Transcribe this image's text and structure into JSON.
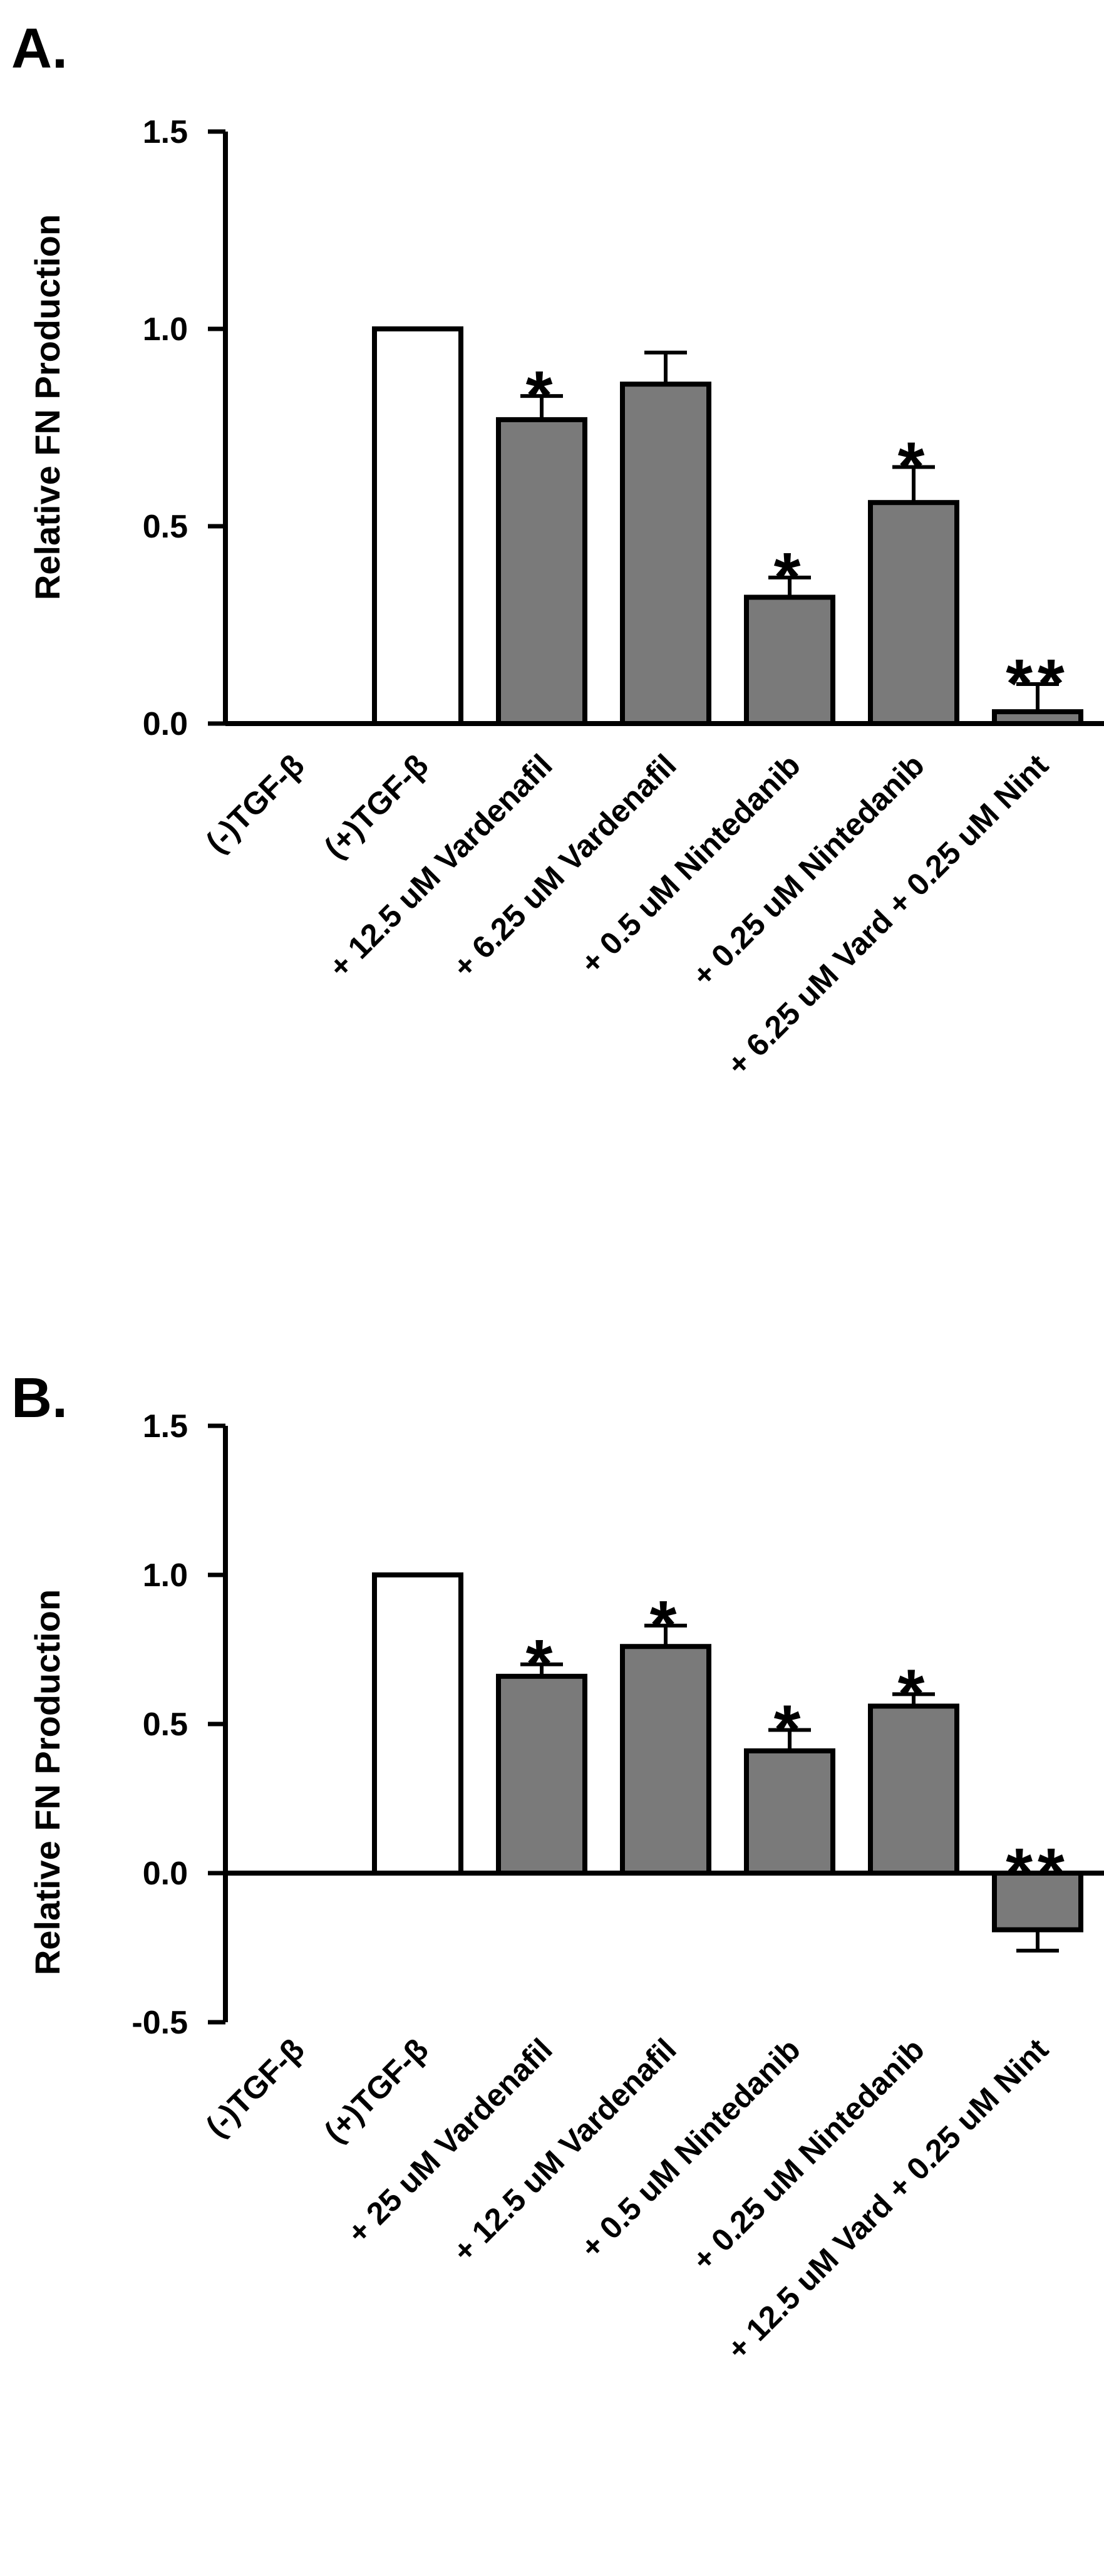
{
  "figure": {
    "panel_labels": [
      "A.",
      "B."
    ]
  },
  "colors": {
    "filled_bar": "#7a7a7a",
    "open_bar": "#ffffff",
    "stroke": "#000000"
  },
  "chart_data": [
    {
      "type": "bar",
      "panel": "A.",
      "ylabel": "Relative FN Production",
      "ylim": [
        0,
        1.5
      ],
      "yticks": [
        0,
        0.5,
        1.0,
        1.5
      ],
      "ytick_labels": [
        "0.0",
        "0.5",
        "1.0",
        "1.5"
      ],
      "categories": [
        "(-)TGF-β",
        "(+)TGF-β",
        "+ 12.5 uM Vardenafil",
        "+ 6.25 uM Vardenafil",
        "+ 0.5 uM Nintedanib",
        "+ 0.25 uM Nintedanib",
        "+ 6.25 uM Vard + 0.25 uM Nint"
      ],
      "values": [
        0,
        1.0,
        0.77,
        0.86,
        0.32,
        0.56,
        0.03
      ],
      "errors": [
        0,
        0,
        0.06,
        0.08,
        0.05,
        0.09,
        0.07
      ],
      "fill": [
        "gray",
        "white",
        "gray",
        "gray",
        "gray",
        "gray",
        "gray"
      ],
      "significance": [
        "",
        "",
        "*",
        "",
        "*",
        "*",
        "**"
      ]
    },
    {
      "type": "bar",
      "panel": "B.",
      "ylabel": "Relative FN Production",
      "ylim": [
        -0.5,
        1.5
      ],
      "yticks": [
        -0.5,
        0,
        0.5,
        1.0,
        1.5
      ],
      "ytick_labels": [
        "-0.5",
        "0.0",
        "0.5",
        "1.0",
        "1.5"
      ],
      "categories": [
        "(-)TGF-β",
        "(+)TGF-β",
        "+ 25 uM Vardenafil",
        "+ 12.5 uM Vardenafil",
        "+ 0.5 uM Nintedanib",
        "+ 0.25 uM Nintedanib",
        "+ 12.5 uM Vard + 0.25 uM Nint"
      ],
      "values": [
        0,
        1.0,
        0.66,
        0.76,
        0.41,
        0.56,
        -0.19
      ],
      "errors": [
        0,
        0,
        0.04,
        0.07,
        0.07,
        0.04,
        0.07
      ],
      "fill": [
        "gray",
        "white",
        "gray",
        "gray",
        "gray",
        "gray",
        "gray"
      ],
      "significance": [
        "",
        "",
        "*",
        "*",
        "*",
        "*",
        "**"
      ]
    }
  ]
}
